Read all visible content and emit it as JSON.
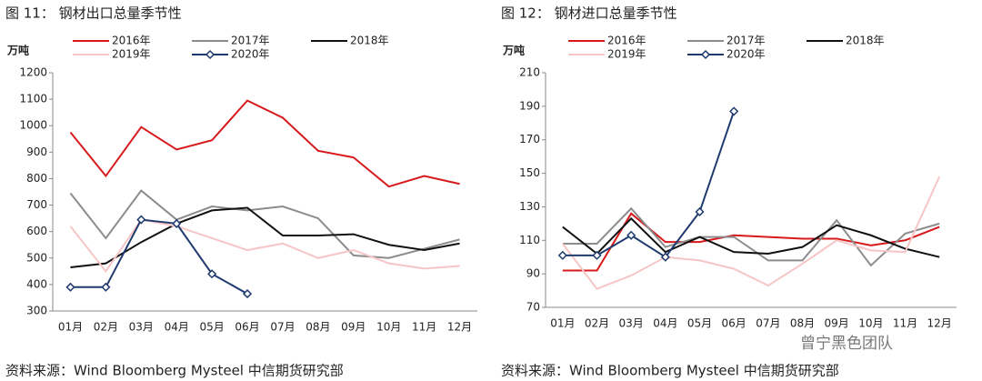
{
  "chart_data": [
    {
      "type": "line",
      "title": "图 11：    钢材出口总量季节性",
      "ylabel": "万吨",
      "categories": [
        "01月",
        "02月",
        "03月",
        "04月",
        "05月",
        "06月",
        "07月",
        "08月",
        "09月",
        "10月",
        "11月",
        "12月"
      ],
      "ylim": [
        300,
        1200
      ],
      "yticks": [
        300,
        400,
        500,
        600,
        700,
        800,
        900,
        1000,
        1100,
        1200
      ],
      "grid": false,
      "series": [
        {
          "name": "2016年",
          "color": "#d7191c",
          "values": [
            975,
            810,
            995,
            910,
            945,
            1095,
            1030,
            905,
            880,
            770,
            810,
            780
          ]
        },
        {
          "name": "2017年",
          "color": "#8c8c8c",
          "values": [
            745,
            575,
            755,
            645,
            695,
            680,
            695,
            650,
            510,
            500,
            535,
            570
          ]
        },
        {
          "name": "2018年",
          "color": "#111111",
          "values": [
            465,
            480,
            560,
            630,
            680,
            690,
            585,
            585,
            590,
            550,
            530,
            555
          ]
        },
        {
          "name": "2019年",
          "color": "#f6c6c6",
          "values": [
            620,
            450,
            645,
            620,
            575,
            530,
            555,
            500,
            530,
            480,
            460,
            470
          ]
        },
        {
          "name": "2020年",
          "color": "#1f3a6e",
          "marker": "diamond",
          "values": [
            390,
            390,
            645,
            630,
            440,
            365,
            null,
            null,
            null,
            null,
            null,
            null
          ]
        }
      ],
      "source": "资料来源：Wind Bloomberg Mysteel 中信期货研究部"
    },
    {
      "type": "line",
      "title": "图 12：    钢材进口总量季节性",
      "ylabel": "万吨",
      "categories": [
        "01月",
        "02月",
        "03月",
        "04月",
        "05月",
        "06月",
        "07月",
        "08月",
        "09月",
        "10月",
        "11月",
        "12月"
      ],
      "ylim": [
        70,
        210
      ],
      "yticks": [
        70,
        90,
        110,
        130,
        150,
        170,
        190,
        210
      ],
      "grid": false,
      "series": [
        {
          "name": "2016年",
          "color": "#d7191c",
          "values": [
            92,
            92,
            126,
            109,
            109,
            113,
            112,
            111,
            111,
            107,
            110,
            118
          ]
        },
        {
          "name": "2017年",
          "color": "#8c8c8c",
          "values": [
            108,
            108,
            129,
            106,
            112,
            112,
            98,
            98,
            122,
            95,
            114,
            120
          ]
        },
        {
          "name": "2018年",
          "color": "#111111",
          "values": [
            118,
            102,
            123,
            103,
            112,
            103,
            102,
            106,
            119,
            113,
            105,
            100
          ]
        },
        {
          "name": "2019年",
          "color": "#f6c6c6",
          "values": [
            108,
            81,
            89,
            100,
            98,
            93,
            83,
            96,
            110,
            104,
            103,
            148
          ]
        },
        {
          "name": "2020年",
          "color": "#1f3a6e",
          "marker": "diamond",
          "values": [
            101,
            101,
            113,
            100,
            127,
            187,
            null,
            null,
            null,
            null,
            null,
            null
          ]
        }
      ],
      "source": "资料来源：Wind Bloomberg Mysteel 中信期货研究部"
    }
  ],
  "watermark": "曾宁黑色团队"
}
